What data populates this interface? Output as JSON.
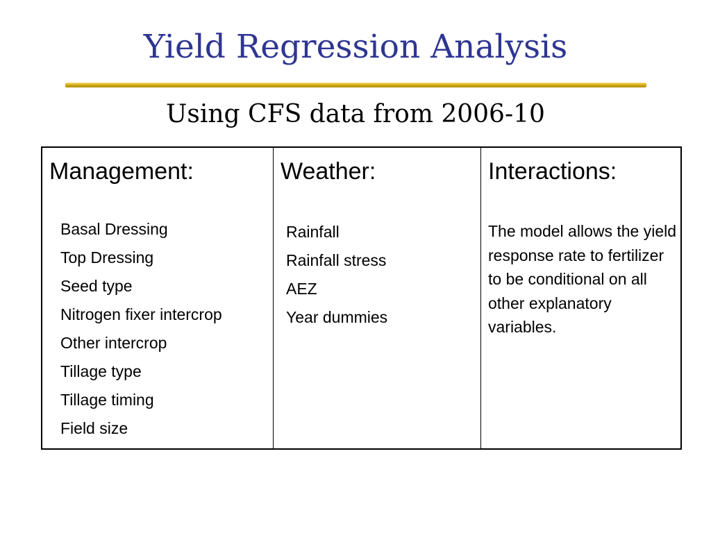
{
  "slide": {
    "title": "Yield Regression Analysis",
    "subtitle": "Using CFS data from 2006-10",
    "title_color": "#2e3592",
    "rule_color": "#d4ae1c"
  },
  "table": {
    "columns": [
      {
        "header": "Management:",
        "items": [
          "Basal Dressing",
          "Top Dressing",
          "Seed type",
          "Nitrogen fixer intercrop",
          "Other intercrop",
          "Tillage type",
          "Tillage timing",
          "Field size"
        ]
      },
      {
        "header": "Weather:",
        "items": [
          "Rainfall",
          "Rainfall stress",
          "AEZ",
          "Year dummies"
        ]
      },
      {
        "header": "Interactions:",
        "text": "The model allows the yield response rate to fertilizer to be conditional on all other explanatory variables."
      }
    ]
  }
}
